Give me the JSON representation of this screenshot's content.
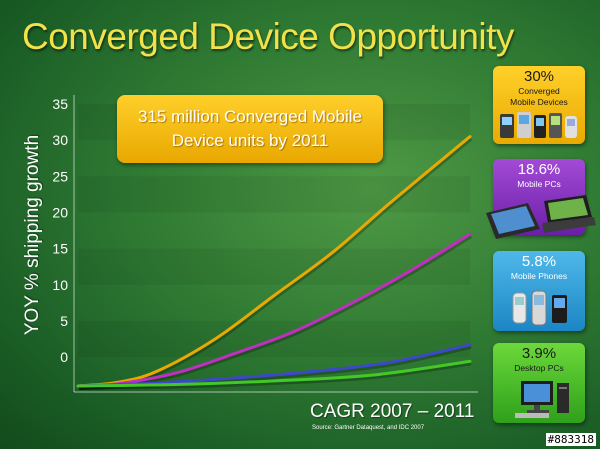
{
  "slide": {
    "title": "Converged Device Opportunity",
    "watermark": "#883318"
  },
  "callout": {
    "line1": "315 million Converged Mobile",
    "line2": "Device units by 2011"
  },
  "cards": [
    {
      "percent": "30%",
      "label_line1": "Converged",
      "label_line2": "Mobile Devices",
      "icon": "mobile-devices-icon",
      "color": "#f5bb12"
    },
    {
      "percent": "18.6%",
      "label_line1": "Mobile PCs",
      "label_line2": "",
      "icon": "laptop-icon",
      "color": "#8a35c4"
    },
    {
      "percent": "5.8%",
      "label_line1": "Mobile Phones",
      "label_line2": "",
      "icon": "phone-icon",
      "color": "#35a3dc"
    },
    {
      "percent": "3.9%",
      "label_line1": "Desktop PCs",
      "label_line2": "",
      "icon": "desktop-icon",
      "color": "#4fbf2a"
    }
  ],
  "chart_data": {
    "type": "line",
    "title": "",
    "xlabel": "CAGR 2007 – 2011",
    "ylabel": "YOY  % shipping growth",
    "source": "Source: Gartner Dataquest, and IDC 2007",
    "ylim": [
      -4,
      35
    ],
    "yticks": [
      0,
      5,
      10,
      15,
      20,
      25,
      30,
      35
    ],
    "xlim": [
      0,
      1
    ],
    "grid": false,
    "legend": "none",
    "series": [
      {
        "color": "#e8a900",
        "points": [
          [
            0,
            -4
          ],
          [
            0.1,
            -3.5
          ],
          [
            0.2,
            -2
          ],
          [
            0.35,
            2.5
          ],
          [
            0.5,
            8.5
          ],
          [
            0.65,
            14.5
          ],
          [
            0.8,
            21.5
          ],
          [
            1.0,
            30.5
          ]
        ]
      },
      {
        "color": "#c02fbf",
        "points": [
          [
            0,
            -4
          ],
          [
            0.1,
            -3.7
          ],
          [
            0.25,
            -2.2
          ],
          [
            0.4,
            0.5
          ],
          [
            0.55,
            3.5
          ],
          [
            0.7,
            7.5
          ],
          [
            0.85,
            12.0
          ],
          [
            1.0,
            17.0
          ]
        ]
      },
      {
        "color": "#3d48c8",
        "points": [
          [
            0,
            -4
          ],
          [
            0.2,
            -3.6
          ],
          [
            0.4,
            -2.9
          ],
          [
            0.6,
            -2.0
          ],
          [
            0.8,
            -0.7
          ],
          [
            1.0,
            1.7
          ]
        ]
      },
      {
        "color": "#44c828",
        "points": [
          [
            0,
            -4
          ],
          [
            0.25,
            -3.8
          ],
          [
            0.5,
            -3.3
          ],
          [
            0.75,
            -2.5
          ],
          [
            1.0,
            -0.6
          ]
        ]
      }
    ]
  }
}
